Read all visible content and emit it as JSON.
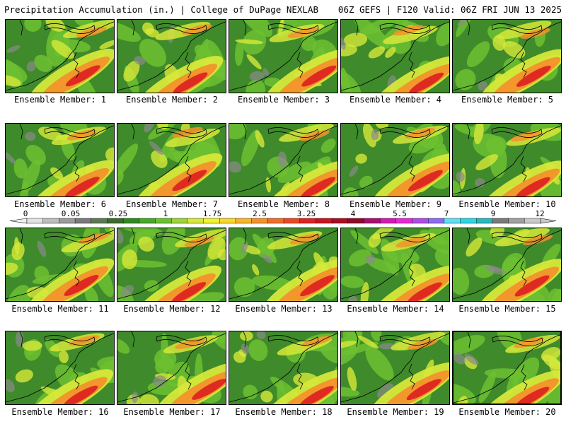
{
  "header": {
    "title_left": "Precipitation Accumulation (in.) | College of DuPage NEXLAB",
    "title_right": "06Z GEFS | F120 Valid: 06Z FRI JUN 13 2025"
  },
  "member_label_prefix": "Ensemble Member: ",
  "members": [
    {
      "number": 1,
      "label": "Ensemble Member: 1"
    },
    {
      "number": 2,
      "label": "Ensemble Member: 2"
    },
    {
      "number": 3,
      "label": "Ensemble Member: 3"
    },
    {
      "number": 4,
      "label": "Ensemble Member: 4"
    },
    {
      "number": 5,
      "label": "Ensemble Member: 5"
    },
    {
      "number": 6,
      "label": "Ensemble Member: 6"
    },
    {
      "number": 7,
      "label": "Ensemble Member: 7"
    },
    {
      "number": 8,
      "label": "Ensemble Member: 8"
    },
    {
      "number": 9,
      "label": "Ensemble Member: 9"
    },
    {
      "number": 10,
      "label": "Ensemble Member: 10"
    },
    {
      "number": 11,
      "label": "Ensemble Member: 11"
    },
    {
      "number": 12,
      "label": "Ensemble Member: 12"
    },
    {
      "number": 13,
      "label": "Ensemble Member: 13"
    },
    {
      "number": 14,
      "label": "Ensemble Member: 14"
    },
    {
      "number": 15,
      "label": "Ensemble Member: 15"
    },
    {
      "number": 16,
      "label": "Ensemble Member: 16"
    },
    {
      "number": 17,
      "label": "Ensemble Member: 17"
    },
    {
      "number": 18,
      "label": "Ensemble Member: 18"
    },
    {
      "number": 19,
      "label": "Ensemble Member: 19"
    },
    {
      "number": 20,
      "label": "Ensemble Member: 20",
      "selected": true
    }
  ],
  "colorbar": {
    "tick_labels": [
      "0",
      "0.05",
      "0.25",
      "1",
      "1.75",
      "2.5",
      "3.25",
      "4",
      "5.5",
      "7",
      "9",
      "12"
    ],
    "colors": [
      "#e2e2e2",
      "#bdbdbd",
      "#9c9c9c",
      "#7a7a7a",
      "#5b7a52",
      "#3d6b2e",
      "#2f8a20",
      "#47a82a",
      "#6cc030",
      "#9ed43a",
      "#d6e83a",
      "#f2f22e",
      "#f8d82a",
      "#f7b52a",
      "#f2922a",
      "#ee6f28",
      "#e84a26",
      "#dd2422",
      "#c8141e",
      "#a80e20",
      "#8c0a2a",
      "#a8106e",
      "#d419b4",
      "#e62ad2",
      "#b04be6",
      "#8e6cf0",
      "#5ee0f2",
      "#2cd6e6",
      "#28b8be",
      "#7a7a7a",
      "#a0a0a0",
      "#c8c8c8"
    ]
  },
  "colors": {
    "background": "#ffffff",
    "field_low": "#3f8a2a",
    "field_mid": "#6cc030",
    "field_light": "#d6e83a",
    "field_high": "#f2922a",
    "field_max": "#dd2422"
  }
}
